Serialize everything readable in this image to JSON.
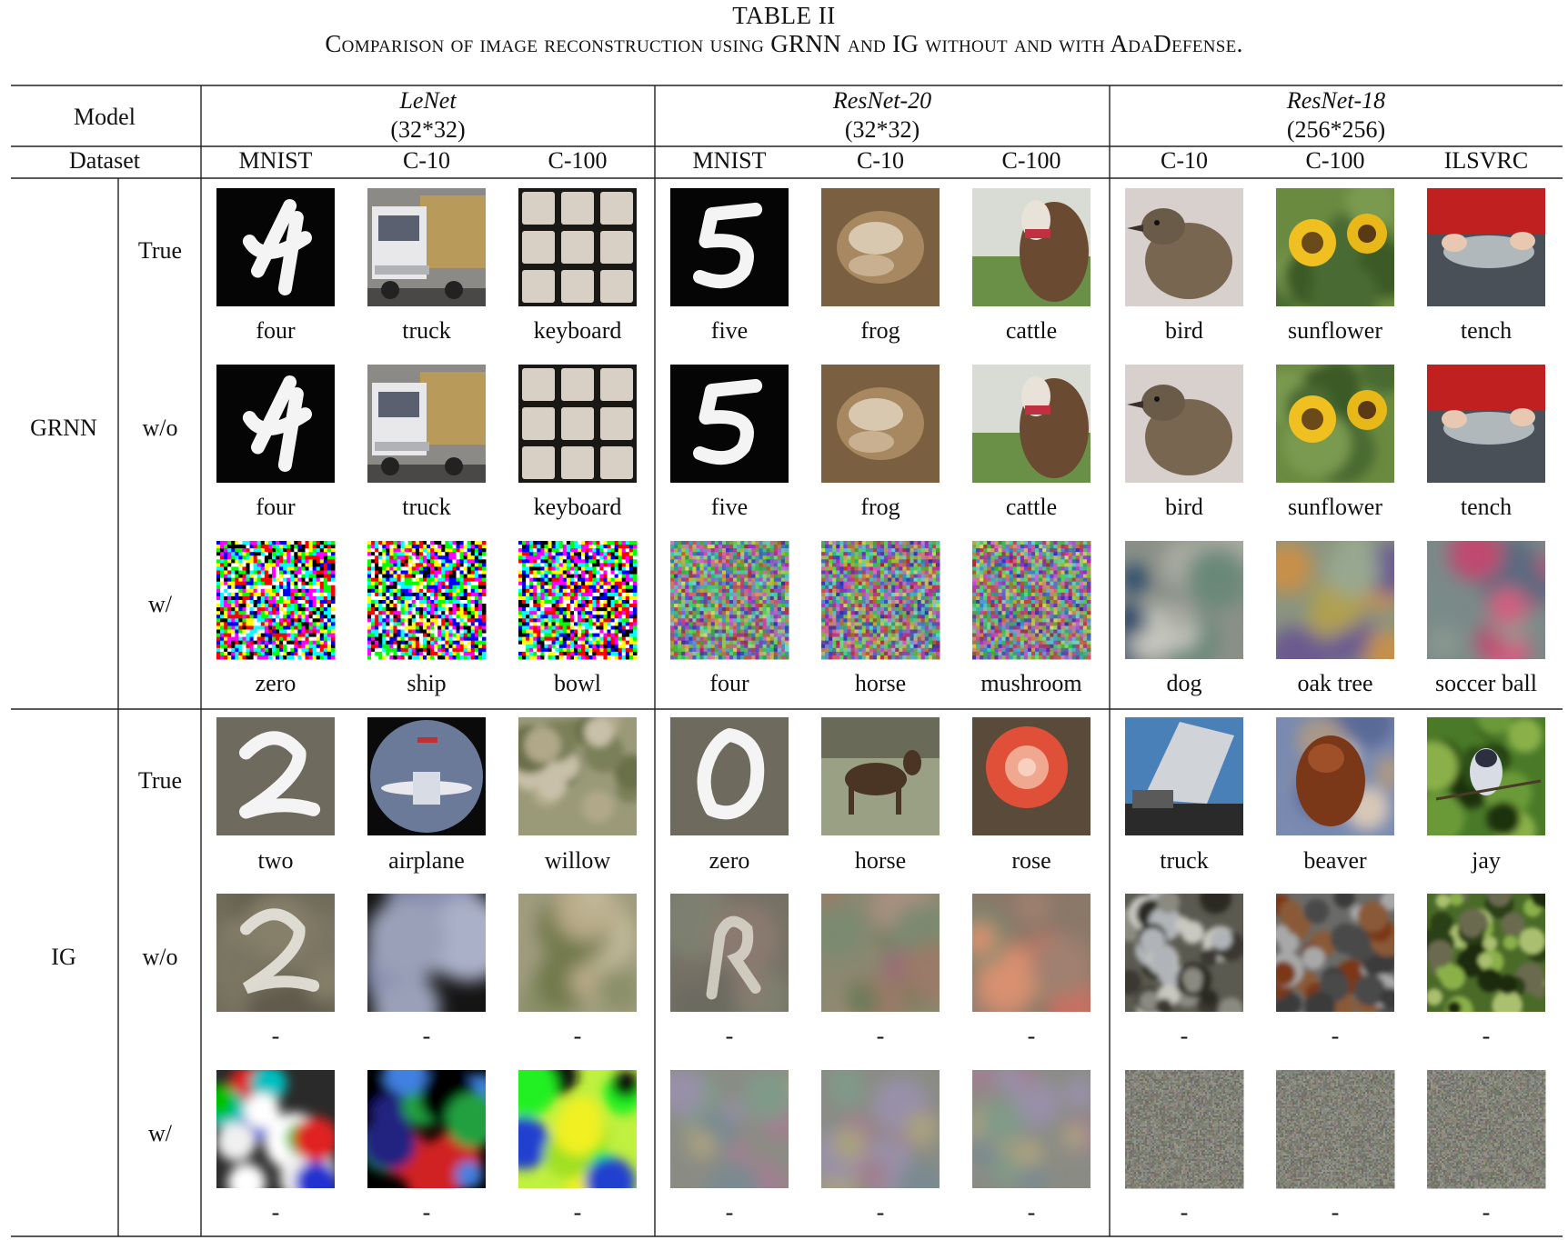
{
  "caption": {
    "table_number": "TABLE II",
    "title": "Comparison of image reconstruction using GRNN and IG without and with AdaDefense."
  },
  "header": {
    "model_label": "Model",
    "dataset_label": "Dataset",
    "models": [
      {
        "name": "LeNet",
        "size": "(32*32)",
        "datasets": [
          "MNIST",
          "C-10",
          "C-100"
        ]
      },
      {
        "name": "ResNet-20",
        "size": "(32*32)",
        "datasets": [
          "MNIST",
          "C-10",
          "C-100"
        ]
      },
      {
        "name": "ResNet-18",
        "size": "(256*256)",
        "datasets": [
          "C-10",
          "C-100",
          "ILSVRC"
        ]
      }
    ]
  },
  "groups": [
    {
      "name": "GRNN",
      "rows": [
        {
          "setting": "True",
          "labels": [
            "four",
            "truck",
            "keyboard",
            "five",
            "frog",
            "cattle",
            "bird",
            "sunflower",
            "tench"
          ],
          "images": [
            "digit-4-black",
            "truck",
            "keyboard",
            "digit-5-black",
            "frog",
            "cattle",
            "bird",
            "sunflower",
            "tench"
          ]
        },
        {
          "setting": "w/o",
          "labels": [
            "four",
            "truck",
            "keyboard",
            "five",
            "frog",
            "cattle",
            "bird",
            "sunflower",
            "tench"
          ],
          "images": [
            "digit-4-black",
            "truck",
            "keyboard",
            "digit-5-black",
            "frog",
            "cattle",
            "bird",
            "sunflower",
            "tench"
          ]
        },
        {
          "setting": "w/",
          "labels": [
            "zero",
            "ship",
            "bowl",
            "four",
            "horse",
            "mushroom",
            "dog",
            "oak tree",
            "soccer ball"
          ],
          "images": [
            "noise-bright",
            "noise-bright",
            "noise-bright",
            "noise-mid",
            "noise-mid",
            "noise-mid",
            "blur-gray-blue",
            "blur-gray-orange",
            "blur-gray-pink"
          ]
        }
      ]
    },
    {
      "name": "IG",
      "rows": [
        {
          "setting": "True",
          "labels": [
            "two",
            "airplane",
            "willow",
            "zero",
            "horse",
            "rose",
            "truck",
            "beaver",
            "jay"
          ],
          "images": [
            "digit-2-gray",
            "airplane",
            "willow",
            "digit-0-gray",
            "horse",
            "rose",
            "truck-photo",
            "beaver",
            "jay"
          ]
        },
        {
          "setting": "w/o",
          "labels": [
            "-",
            "-",
            "-",
            "-",
            "-",
            "-",
            "-",
            "-",
            "-"
          ],
          "images": [
            "digit-2-blur",
            "airplane-blur",
            "willow-blur",
            "digit-0-blur",
            "horse-blur",
            "rose-blur",
            "truck-noisy",
            "beaver-noisy",
            "jay-noisy"
          ]
        },
        {
          "setting": "w/",
          "labels": [
            "-",
            "-",
            "-",
            "-",
            "-",
            "-",
            "-",
            "-",
            "-"
          ],
          "images": [
            "blobs-vivid",
            "blobs-dark",
            "blobs-green",
            "blobs-muted",
            "blobs-muted",
            "blobs-muted",
            "fine-noise",
            "fine-noise",
            "fine-noise"
          ]
        }
      ]
    }
  ]
}
